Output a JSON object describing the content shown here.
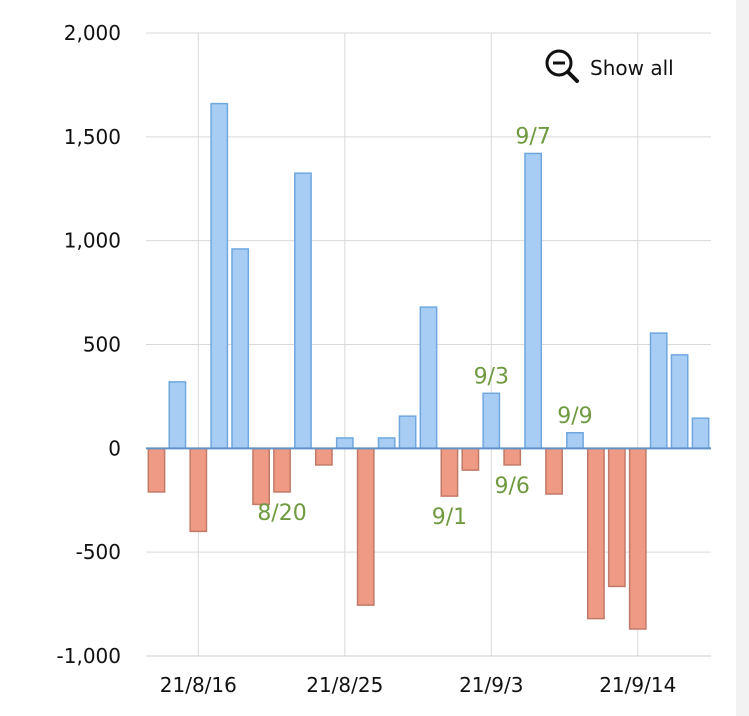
{
  "ui": {
    "show_all_label": "Show all",
    "zoom_icon": "zoom-out-icon"
  },
  "colors": {
    "positive_fill": "#a8cdf5",
    "positive_stroke": "#6fa7de",
    "negative_fill": "#ee9a84",
    "negative_stroke": "#c27a68",
    "annotation": "#6f9a40",
    "grid": "#d9d9d9"
  },
  "chart_data": {
    "type": "bar",
    "ylim": [
      -1000,
      2000
    ],
    "yticks": [
      2000,
      1500,
      1000,
      500,
      0,
      -500,
      -1000
    ],
    "ytick_labels": [
      "2,000",
      "1,500",
      "1,000",
      "500",
      "0",
      "-500",
      "-1,000"
    ],
    "xtick_labels": [
      {
        "label": "21/8/16",
        "index": 2
      },
      {
        "label": "21/8/25",
        "index": 9
      },
      {
        "label": "21/9/3",
        "index": 16
      },
      {
        "label": "21/9/14",
        "index": 23
      }
    ],
    "values": [
      -210,
      320,
      -400,
      1660,
      960,
      -270,
      -210,
      1325,
      -80,
      50,
      -755,
      50,
      155,
      680,
      -230,
      -105,
      265,
      -80,
      1420,
      -220,
      75,
      -820,
      -665,
      -870,
      555,
      450,
      145
    ],
    "annotations": [
      {
        "label": "8/20",
        "index": 6
      },
      {
        "label": "9/1",
        "index": 14
      },
      {
        "label": "9/3",
        "index": 16
      },
      {
        "label": "9/6",
        "index": 17
      },
      {
        "label": "9/7",
        "index": 18
      },
      {
        "label": "9/9",
        "index": 20
      }
    ],
    "grid": true,
    "legend": "none"
  }
}
